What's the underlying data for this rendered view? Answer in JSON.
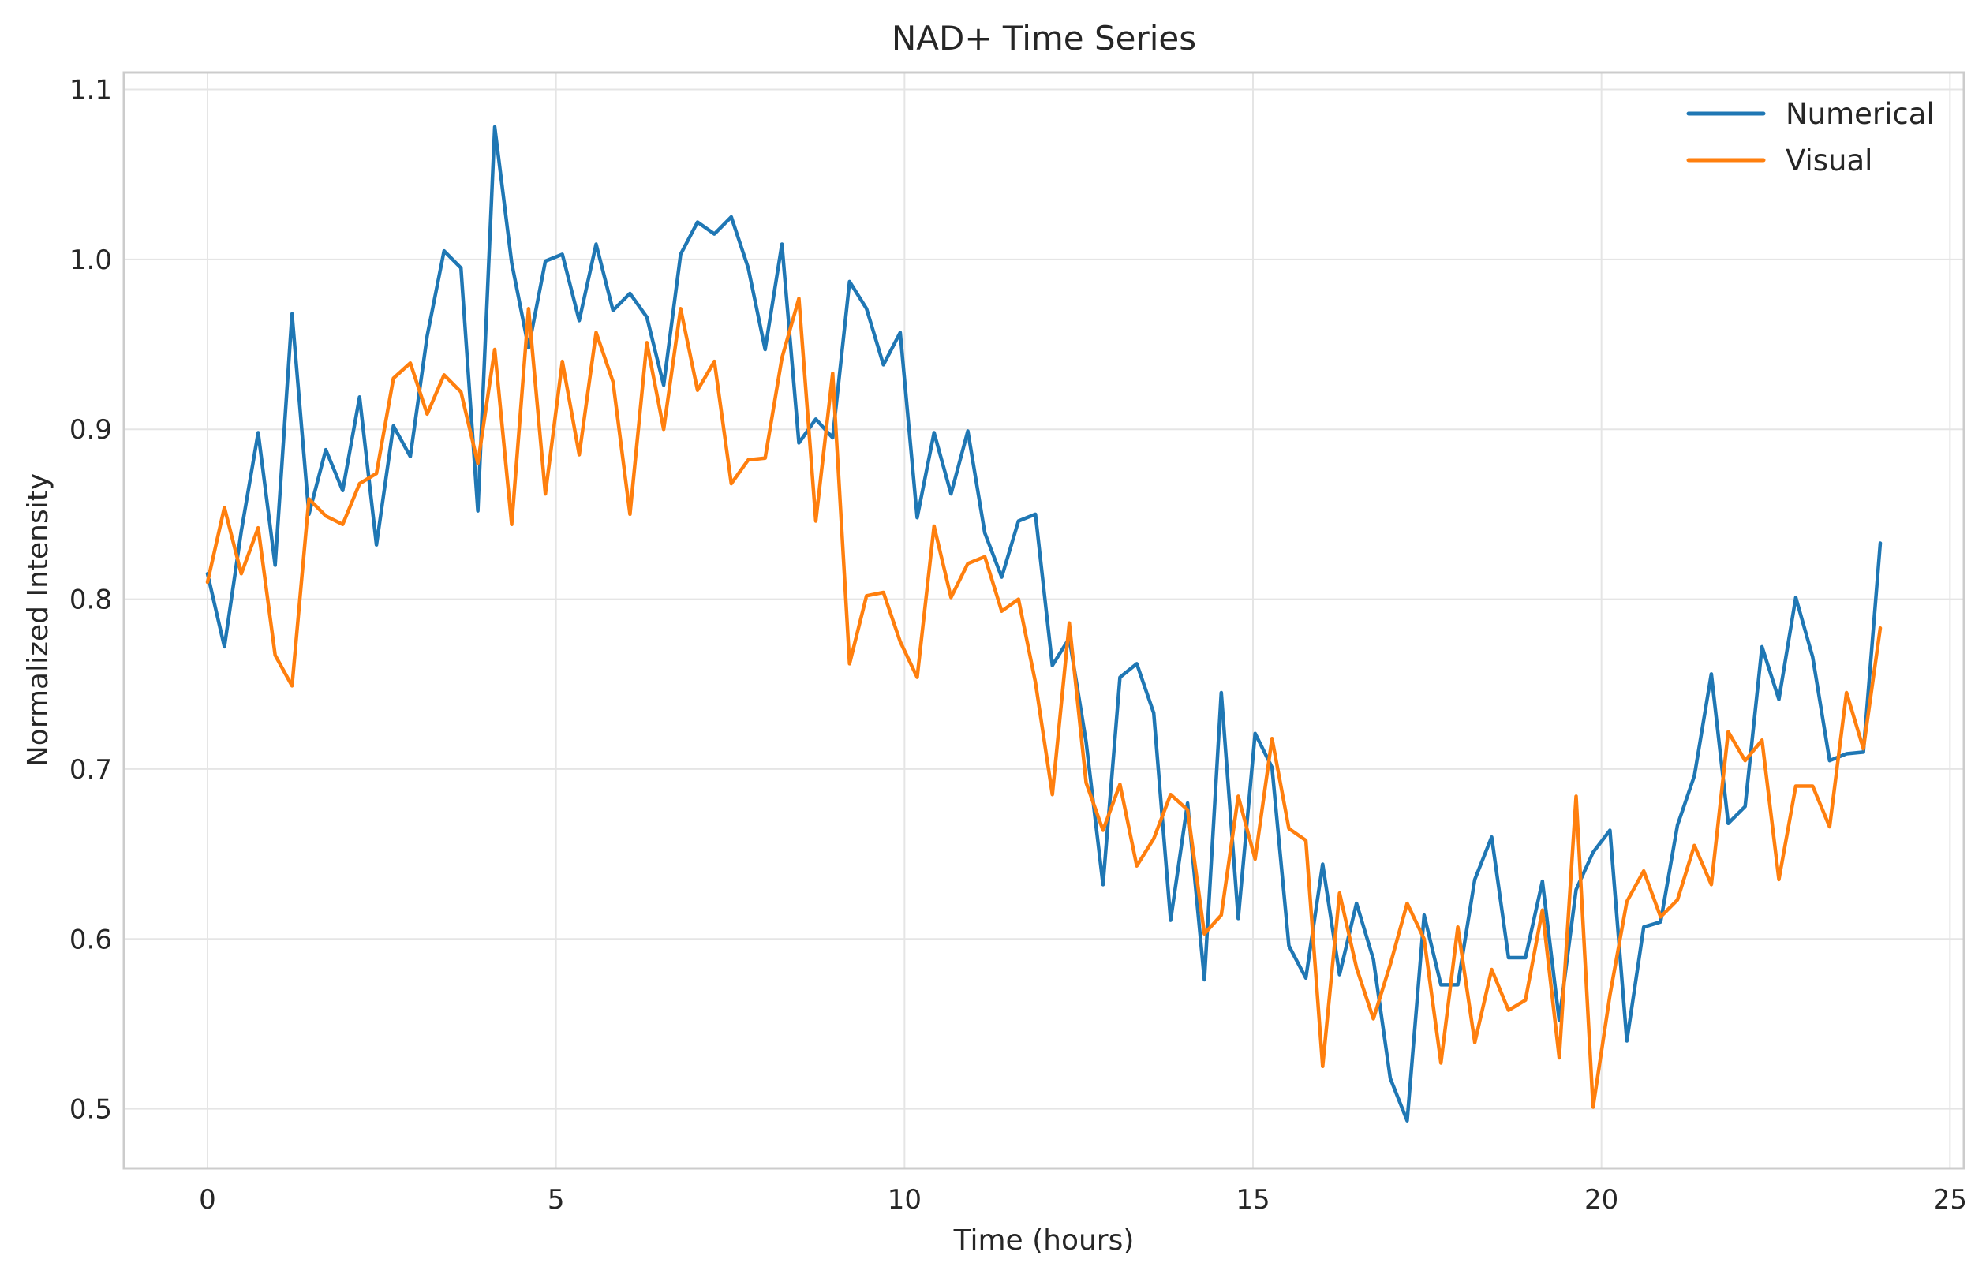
{
  "chart_data": {
    "type": "line",
    "title": "NAD+ Time Series",
    "xlabel": "Time (hours)",
    "ylabel": "Normalized Intensity",
    "xlim": [
      -1.2,
      25.2
    ],
    "ylim": [
      0.465,
      1.11
    ],
    "xticks": [
      0,
      5,
      10,
      15,
      20,
      25
    ],
    "xtick_labels": [
      "0",
      "5",
      "10",
      "15",
      "20",
      "25"
    ],
    "yticks": [
      0.5,
      0.6,
      0.7,
      0.8,
      0.9,
      1.0,
      1.1
    ],
    "ytick_labels": [
      "0.5",
      "0.6",
      "0.7",
      "0.8",
      "0.9",
      "1.0",
      "1.1"
    ],
    "grid": true,
    "legend_position": "top-right",
    "x": [
      0,
      0.242,
      0.485,
      0.727,
      0.97,
      1.212,
      1.455,
      1.697,
      1.939,
      2.182,
      2.424,
      2.667,
      2.909,
      3.152,
      3.394,
      3.636,
      3.879,
      4.121,
      4.364,
      4.606,
      4.848,
      5.091,
      5.333,
      5.576,
      5.818,
      6.061,
      6.303,
      6.545,
      6.788,
      7.03,
      7.273,
      7.515,
      7.758,
      8,
      8.242,
      8.485,
      8.727,
      8.97,
      9.212,
      9.455,
      9.697,
      9.939,
      10.182,
      10.424,
      10.667,
      10.909,
      11.152,
      11.394,
      11.636,
      11.879,
      12.121,
      12.364,
      12.606,
      12.848,
      13.091,
      13.333,
      13.576,
      13.818,
      14.061,
      14.303,
      14.545,
      14.788,
      15.03,
      15.273,
      15.515,
      15.758,
      16,
      16.242,
      16.485,
      16.727,
      16.97,
      17.212,
      17.455,
      17.697,
      17.939,
      18.182,
      18.424,
      18.667,
      18.909,
      19.152,
      19.394,
      19.636,
      19.879,
      20.121,
      20.364,
      20.606,
      20.848,
      21.091,
      21.333,
      21.576,
      21.818,
      22.061,
      22.303,
      22.545,
      22.788,
      23.03,
      23.273,
      23.515,
      23.758,
      24
    ],
    "series": [
      {
        "name": "Numerical",
        "color": "#1f77b4",
        "values": [
          0.815,
          0.772,
          0.84,
          0.898,
          0.82,
          0.968,
          0.85,
          0.888,
          0.864,
          0.919,
          0.832,
          0.902,
          0.884,
          0.955,
          1.005,
          0.995,
          0.852,
          1.078,
          0.998,
          0.948,
          0.999,
          1.003,
          0.964,
          1.009,
          0.97,
          0.98,
          0.966,
          0.926,
          1.003,
          1.022,
          1.015,
          1.025,
          0.995,
          0.947,
          1.009,
          0.892,
          0.906,
          0.895,
          0.987,
          0.971,
          0.938,
          0.957,
          0.848,
          0.898,
          0.862,
          0.899,
          0.839,
          0.813,
          0.846,
          0.85,
          0.761,
          0.777,
          0.716,
          0.632,
          0.754,
          0.762,
          0.733,
          0.611,
          0.68,
          0.576,
          0.745,
          0.612,
          0.721,
          0.701,
          0.596,
          0.577,
          0.644,
          0.579,
          0.621,
          0.588,
          0.518,
          0.493,
          0.614,
          0.573,
          0.573,
          0.635,
          0.66,
          0.589,
          0.589,
          0.634,
          0.552,
          0.629,
          0.651,
          0.664,
          0.54,
          0.607,
          0.61,
          0.667,
          0.696,
          0.756,
          0.668,
          0.678,
          0.772,
          0.741,
          0.801,
          0.766,
          0.705,
          0.709,
          0.71,
          0.833
        ]
      },
      {
        "name": "Visual",
        "color": "#ff7f0e",
        "values": [
          0.81,
          0.854,
          0.815,
          0.842,
          0.767,
          0.749,
          0.859,
          0.849,
          0.844,
          0.868,
          0.874,
          0.93,
          0.939,
          0.909,
          0.932,
          0.922,
          0.88,
          0.947,
          0.844,
          0.971,
          0.862,
          0.94,
          0.885,
          0.957,
          0.928,
          0.85,
          0.951,
          0.9,
          0.971,
          0.923,
          0.94,
          0.868,
          0.882,
          0.883,
          0.942,
          0.977,
          0.846,
          0.933,
          0.762,
          0.802,
          0.804,
          0.775,
          0.754,
          0.843,
          0.801,
          0.821,
          0.825,
          0.793,
          0.8,
          0.751,
          0.685,
          0.786,
          0.692,
          0.664,
          0.691,
          0.643,
          0.659,
          0.685,
          0.676,
          0.603,
          0.614,
          0.684,
          0.647,
          0.718,
          0.665,
          0.658,
          0.525,
          0.627,
          0.583,
          0.553,
          0.585,
          0.621,
          0.6,
          0.527,
          0.607,
          0.539,
          0.582,
          0.558,
          0.564,
          0.617,
          0.53,
          0.684,
          0.501,
          0.567,
          0.622,
          0.64,
          0.613,
          0.623,
          0.655,
          0.632,
          0.722,
          0.705,
          0.717,
          0.635,
          0.69,
          0.69,
          0.666,
          0.745,
          0.712,
          0.783
        ]
      }
    ]
  }
}
